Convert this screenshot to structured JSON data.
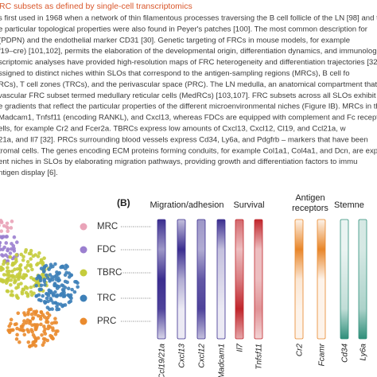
{
  "header": {
    "title": "RC subsets as defined by single-cell transcriptomics"
  },
  "body": {
    "lines": [
      "s first used in 1968 when a network of thin filamentous processes traversing the B cell follicle of the LN [98] and the",
      "e particular topological properties were also found in Peyer's patches [100]. The most common description for",
      "(PDPN) and the endothelial marker CD31 [30]. Genetic targeting of FRCs in mouse models, for example",
      "f19–cre) [101,102], permits the elaboration of the developmental origin, differentiation dynamics, and immunologic",
      "scriptomic analyses have provided high-resolution maps of FRC heterogeneity and differentiation trajectories [32,",
      "ssigned to distinct niches within SLOs that correspond to the antigen-sampling regions (MRCs), B cell fo",
      "RCs), T cell zones (TRCs), and the perivascular space (PRC). The LN medulla, an anatomical compartment that is u",
      "vascular FRC subset termed medullary reticular cells (MedRCs) [103,107]. FRC subsets across all SLOs exhibit",
      "e gradients that reflect the particular properties of the different microenvironmental niches (Figure IB). MRCs in the",
      "Madcam1, Tnfsf11 (encoding RANKL), and Cxcl13, whereas FDCs are equipped with complement and Fc recept",
      "ells, for example Cr2 and Fcer2a. TBRCs express low amounts of Cxcl13, Cxcl12, Cl19, and Ccl21a, w",
      "21a, and Il7 [32]. PRCs surrounding blood vessels express Cd34, Ly6a, and Pdgfrb – markers that have been",
      "tromal cells. The genes encoding ECM proteins forming conduits, for example Col1a1, Col4a1, and Dcn, are expressed by",
      "ent niches in SLOs by elaborating migration pathways, providing growth and differentiation factors to immu",
      "ntigen display [6]."
    ]
  },
  "figure": {
    "panel": "(B)",
    "subsets": [
      "MRC",
      "FDC",
      "TBRC",
      "TRC",
      "PRC"
    ],
    "groups": [
      {
        "label": [
          "Migration/adhesion"
        ],
        "genes": [
          "Ccl19/21a",
          "Cxcl13",
          "Cxcl12",
          "Madcam1"
        ]
      },
      {
        "label": [
          "Survival"
        ],
        "genes": [
          "Il7",
          "Tnfsf11"
        ]
      },
      {
        "label": [
          "Antigen",
          "receptors"
        ],
        "genes": [
          "Cr2",
          "Fcamr"
        ]
      },
      {
        "label": [
          "Stemne"
        ],
        "genes": [
          "Cd34",
          "Ly6a"
        ]
      }
    ]
  }
}
